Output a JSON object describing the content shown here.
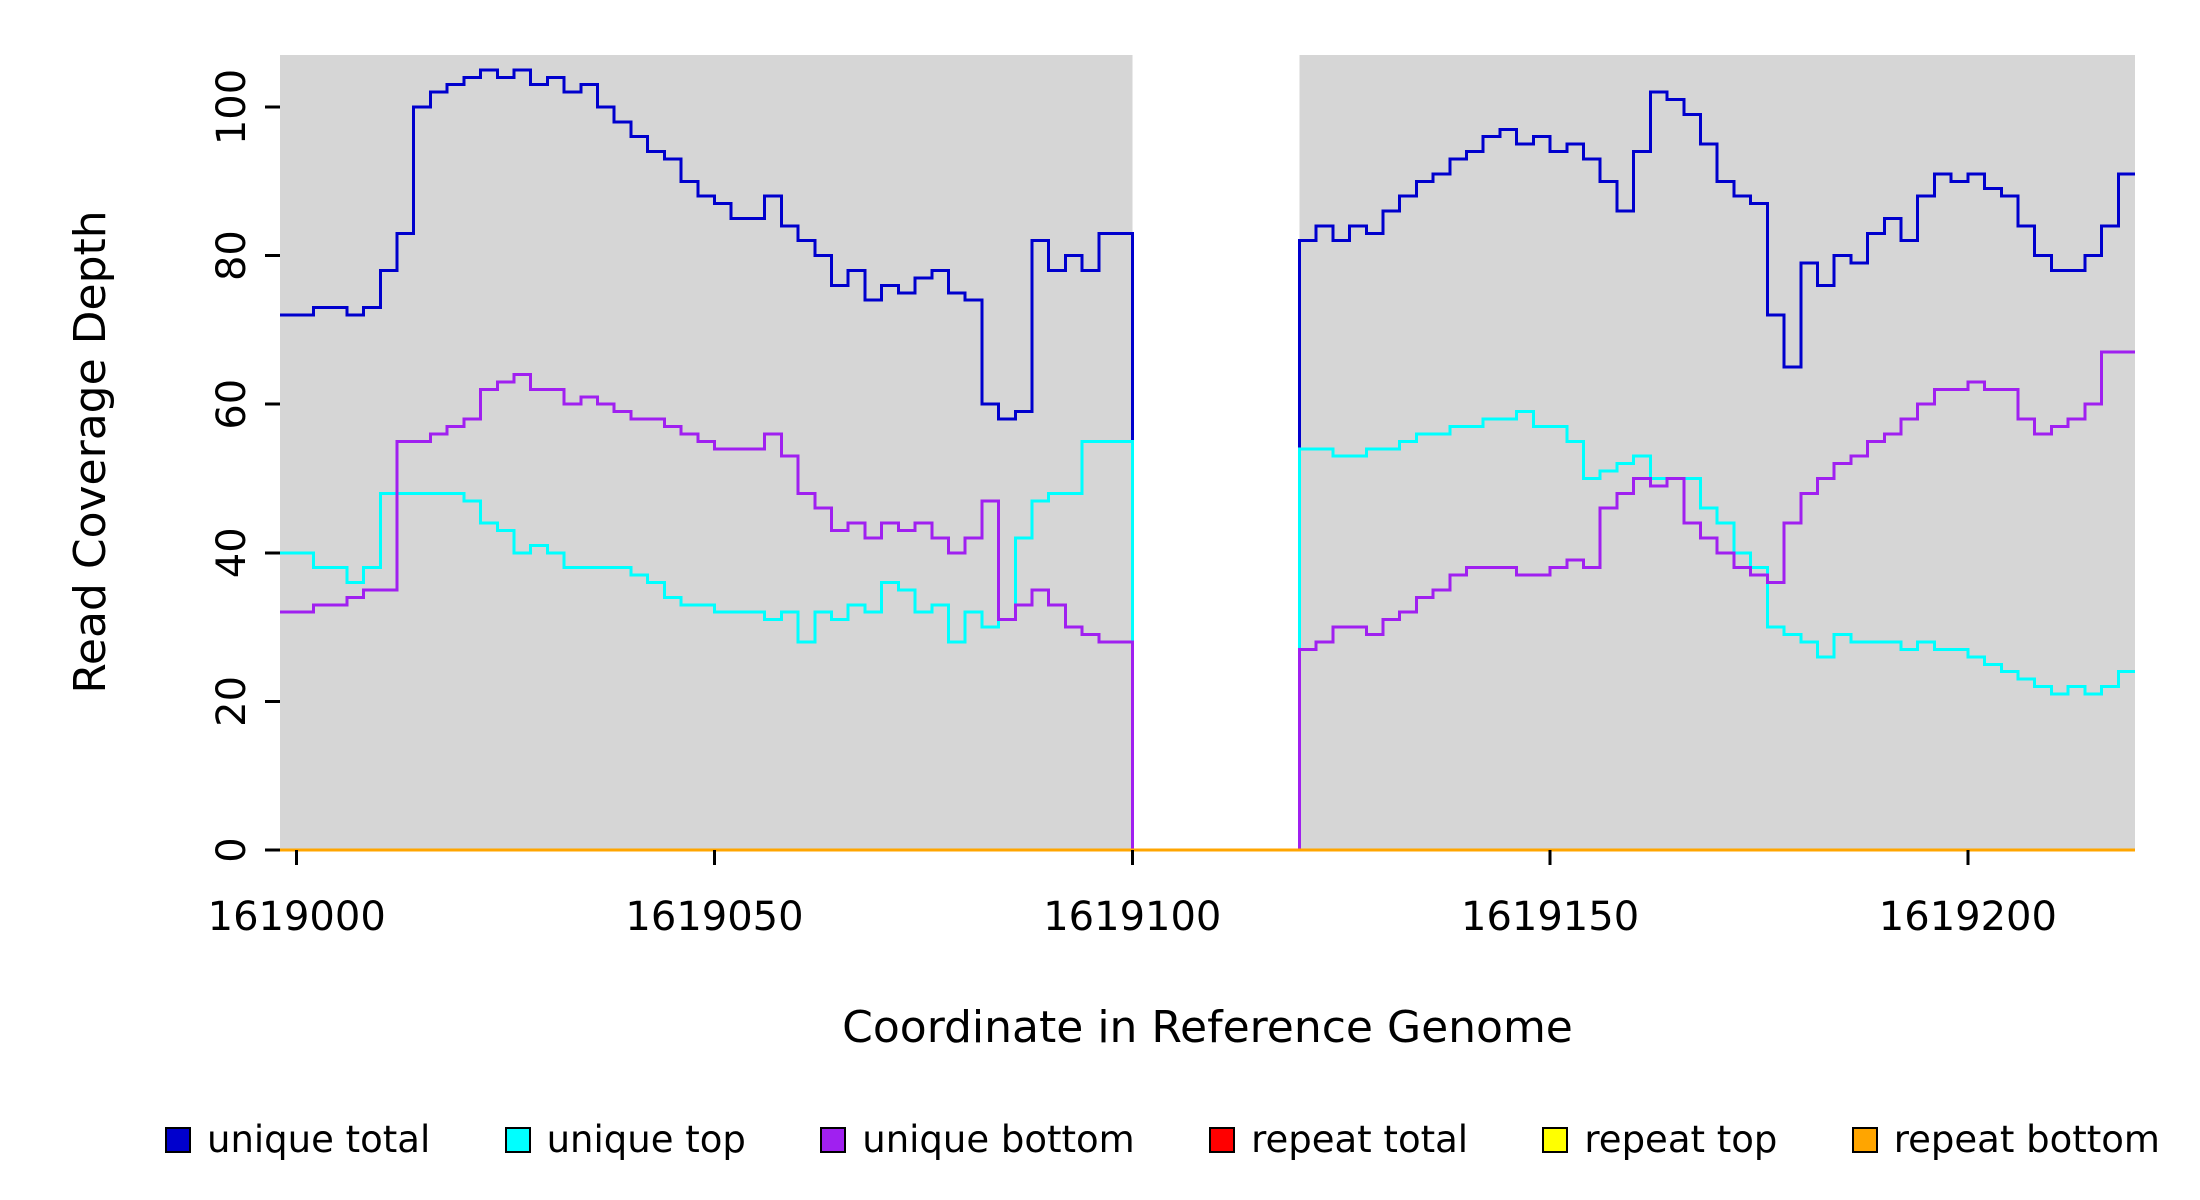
{
  "chart_data": {
    "type": "line",
    "step": true,
    "title": "",
    "xlabel": "Coordinate in Reference Genome",
    "ylabel": "Read Coverage Depth",
    "xlim": [
      1618998,
      1619220
    ],
    "ylim": [
      0,
      107
    ],
    "x_ticks": [
      1619000,
      1619050,
      1619100,
      1619150,
      1619200
    ],
    "y_ticks": [
      0,
      20,
      40,
      60,
      80,
      100
    ],
    "plot_bg": "#D6D6D6",
    "gap": {
      "start": 1619100,
      "end": 1619120,
      "color": "#FFFFFF"
    },
    "legend_position": "bottom",
    "x_start": 1619000,
    "x_step": 2,
    "series": [
      {
        "name": "unique total",
        "color": "#0000CD",
        "values": [
          72,
          73,
          73,
          72,
          73,
          78,
          83,
          100,
          102,
          103,
          104,
          105,
          104,
          105,
          103,
          104,
          102,
          103,
          100,
          98,
          96,
          94,
          93,
          90,
          88,
          87,
          85,
          85,
          88,
          84,
          82,
          80,
          76,
          78,
          74,
          76,
          75,
          77,
          78,
          75,
          74,
          60,
          58,
          59,
          82,
          78,
          80,
          78,
          83,
          83,
          0,
          0,
          0,
          0,
          0,
          0,
          0,
          0,
          0,
          0,
          82,
          84,
          82,
          84,
          83,
          86,
          88,
          90,
          91,
          93,
          94,
          96,
          97,
          95,
          96,
          94,
          95,
          93,
          90,
          86,
          94,
          102,
          101,
          99,
          95,
          90,
          88,
          87,
          72,
          65,
          79,
          76,
          80,
          79,
          83,
          85,
          82,
          88,
          91,
          90,
          91,
          89,
          88,
          84,
          80,
          78,
          78,
          80,
          84,
          91
        ]
      },
      {
        "name": "unique top",
        "color": "#00FFFF",
        "values": [
          40,
          38,
          38,
          36,
          38,
          48,
          48,
          48,
          48,
          48,
          47,
          44,
          43,
          40,
          41,
          40,
          38,
          38,
          38,
          38,
          37,
          36,
          34,
          33,
          33,
          32,
          32,
          32,
          31,
          32,
          28,
          32,
          31,
          33,
          32,
          36,
          35,
          32,
          33,
          28,
          32,
          30,
          31,
          42,
          47,
          48,
          48,
          55,
          55,
          55,
          0,
          0,
          0,
          0,
          0,
          0,
          0,
          0,
          0,
          0,
          54,
          54,
          53,
          53,
          54,
          54,
          55,
          56,
          56,
          57,
          57,
          58,
          58,
          59,
          57,
          57,
          55,
          50,
          51,
          52,
          53,
          50,
          50,
          50,
          46,
          44,
          40,
          38,
          30,
          29,
          28,
          26,
          29,
          28,
          28,
          28,
          27,
          28,
          27,
          27,
          26,
          25,
          24,
          23,
          22,
          21,
          22,
          21,
          22,
          24
        ]
      },
      {
        "name": "unique bottom",
        "color": "#A020F0",
        "values": [
          32,
          33,
          33,
          34,
          35,
          35,
          55,
          55,
          56,
          57,
          58,
          62,
          63,
          64,
          62,
          62,
          60,
          61,
          60,
          59,
          58,
          58,
          57,
          56,
          55,
          54,
          54,
          54,
          56,
          53,
          48,
          46,
          43,
          44,
          42,
          44,
          43,
          44,
          42,
          40,
          42,
          47,
          31,
          33,
          35,
          33,
          30,
          29,
          28,
          28,
          0,
          0,
          0,
          0,
          0,
          0,
          0,
          0,
          0,
          0,
          27,
          28,
          30,
          30,
          29,
          31,
          32,
          34,
          35,
          37,
          38,
          38,
          38,
          37,
          37,
          38,
          39,
          38,
          46,
          48,
          50,
          49,
          50,
          44,
          42,
          40,
          38,
          37,
          36,
          44,
          48,
          50,
          52,
          53,
          55,
          56,
          58,
          60,
          62,
          62,
          63,
          62,
          62,
          58,
          56,
          57,
          58,
          60,
          67,
          67
        ]
      },
      {
        "name": "repeat total",
        "color": "#FF0000",
        "constant": 0
      },
      {
        "name": "repeat top",
        "color": "#FFFF00",
        "constant": 0
      },
      {
        "name": "repeat bottom",
        "color": "#FFA500",
        "constant": 0
      }
    ]
  }
}
